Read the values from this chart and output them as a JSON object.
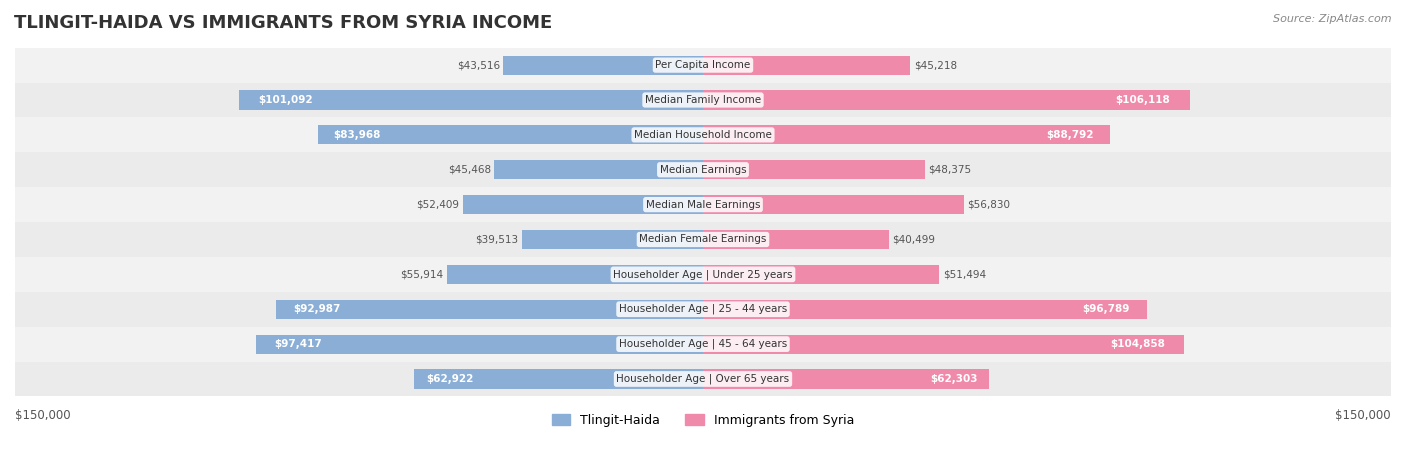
{
  "title": "TLINGIT-HAIDA VS IMMIGRANTS FROM SYRIA INCOME",
  "source": "Source: ZipAtlas.com",
  "categories": [
    "Per Capita Income",
    "Median Family Income",
    "Median Household Income",
    "Median Earnings",
    "Median Male Earnings",
    "Median Female Earnings",
    "Householder Age | Under 25 years",
    "Householder Age | 25 - 44 years",
    "Householder Age | 45 - 64 years",
    "Householder Age | Over 65 years"
  ],
  "tlingit_values": [
    43516,
    101092,
    83968,
    45468,
    52409,
    39513,
    55914,
    92987,
    97417,
    62922
  ],
  "syria_values": [
    45218,
    106118,
    88792,
    48375,
    56830,
    40499,
    51494,
    96789,
    104858,
    62303
  ],
  "tlingit_labels": [
    "$43,516",
    "$101,092",
    "$83,968",
    "$45,468",
    "$52,409",
    "$39,513",
    "$55,914",
    "$92,987",
    "$97,417",
    "$62,922"
  ],
  "syria_labels": [
    "$45,218",
    "$106,118",
    "$88,792",
    "$48,375",
    "$56,830",
    "$40,499",
    "$51,494",
    "$96,789",
    "$104,858",
    "$62,303"
  ],
  "tlingit_color": "#8aaed6",
  "syria_color": "#f08aaa",
  "tlingit_label_color_inside": "#ffffff",
  "tlingit_label_color_outside": "#555555",
  "syria_label_color_inside": "#ffffff",
  "syria_label_color_outside": "#555555",
  "max_value": 150000,
  "bar_height": 0.55,
  "row_bg_color": "#f0f0f0",
  "row_bg_color2": "#e8e8e8",
  "legend_tlingit": "Tlingit-Haida",
  "legend_syria": "Immigrants from Syria",
  "xlabel_left": "$150,000",
  "xlabel_right": "$150,000",
  "tlingit_inside_threshold": 60000,
  "syria_inside_threshold": 60000,
  "background_color": "#ffffff"
}
